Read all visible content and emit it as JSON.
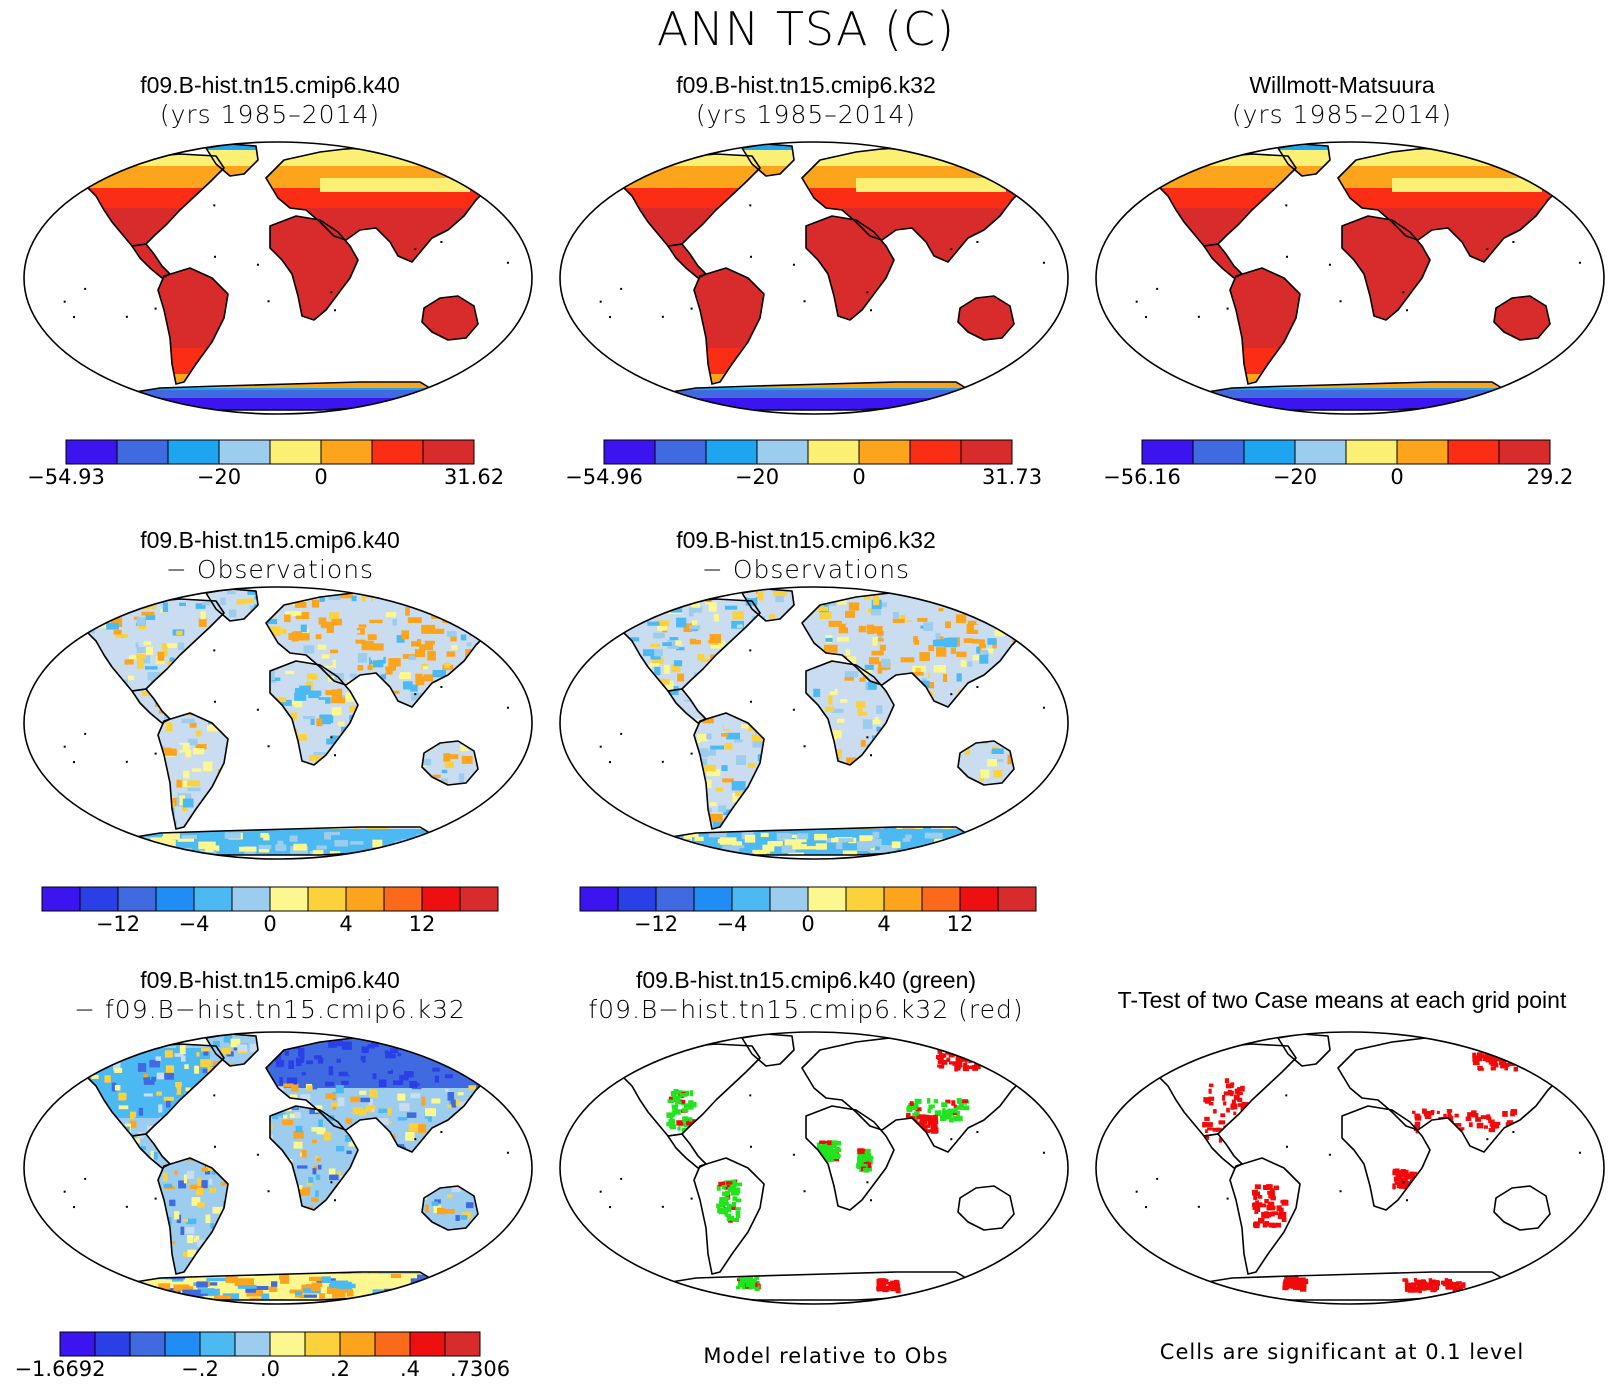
{
  "title": "ANN TSA (C)",
  "colors": {
    "land_light": "#c9dcf0",
    "coast": "#000000",
    "sig_green": "#22e31f",
    "sig_red": "#f20a0a"
  },
  "panels": [
    {
      "id": "k40",
      "line1": "f09.B-hist.tn15.cmip6.k40",
      "line2": "(yrs 1985–2014)",
      "kind": "abs"
    },
    {
      "id": "k32",
      "line1": "f09.B-hist.tn15.cmip6.k32",
      "line2": "(yrs 1985–2014)",
      "kind": "abs"
    },
    {
      "id": "obs",
      "line1": "Willmott-Matsuura",
      "line2": "(yrs 1985–2014)",
      "kind": "abs"
    },
    {
      "id": "k40mobs",
      "line1": "f09.B-hist.tn15.cmip6.k40",
      "line2": "− Observations",
      "kind": "bias"
    },
    {
      "id": "k32mobs",
      "line1": "f09.B-hist.tn15.cmip6.k32",
      "line2": "− Observations",
      "kind": "bias"
    },
    {
      "id": "diff",
      "line1": "f09.B-hist.tn15.cmip6.k40",
      "line2": "− f09.B−hist.tn15.cmip6.k32",
      "kind": "diff"
    },
    {
      "id": "sig",
      "line1": "f09.B-hist.tn15.cmip6.k40 (green)",
      "line2": "f09.B−hist.tn15.cmip6.k32 (red)",
      "kind": "sig"
    },
    {
      "id": "ttest",
      "line1": "T-Test of two Case means at each grid point",
      "line2": "",
      "kind": "ttest"
    }
  ],
  "colorbars": [
    {
      "id": "cb1",
      "colors": [
        "#3c14f0",
        "#3f6ae0",
        "#1ea5f2",
        "#9ccdee",
        "#fbf074",
        "#fca41c",
        "#fb2d14",
        "#d82b2b"
      ],
      "labels": [
        {
          "i": 0,
          "text": "−54.93"
        },
        {
          "i": 3,
          "text": "−20"
        },
        {
          "i": 5,
          "text": "0"
        },
        {
          "i": 8,
          "text": "31.62"
        }
      ]
    },
    {
      "id": "cb2",
      "colors": [
        "#3c14f0",
        "#3f6ae0",
        "#1ea5f2",
        "#9ccdee",
        "#fbf074",
        "#fca41c",
        "#fb2d14",
        "#d82b2b"
      ],
      "labels": [
        {
          "i": 0,
          "text": "−54.96"
        },
        {
          "i": 3,
          "text": "−20"
        },
        {
          "i": 5,
          "text": "0"
        },
        {
          "i": 8,
          "text": "31.73"
        }
      ]
    },
    {
      "id": "cb3",
      "colors": [
        "#3c14f0",
        "#3f6ae0",
        "#1ea5f2",
        "#9ccdee",
        "#fbf074",
        "#fca41c",
        "#fb2d14",
        "#d82b2b"
      ],
      "labels": [
        {
          "i": 0,
          "text": "−56.16"
        },
        {
          "i": 3,
          "text": "−20"
        },
        {
          "i": 5,
          "text": "0"
        },
        {
          "i": 8,
          "text": "29.2"
        }
      ]
    },
    {
      "id": "cb4",
      "colors": [
        "#3c14f0",
        "#2a3fe6",
        "#3f6ae0",
        "#1f8df3",
        "#4db9f2",
        "#9ccdee",
        "#fdf78f",
        "#fbd23c",
        "#fca41c",
        "#fb6a1a",
        "#ee1010",
        "#d82b2b"
      ],
      "labels": [
        {
          "i": 2,
          "text": "−12"
        },
        {
          "i": 4,
          "text": "−4"
        },
        {
          "i": 6,
          "text": "0"
        },
        {
          "i": 8,
          "text": "4"
        },
        {
          "i": 10,
          "text": "12"
        }
      ]
    },
    {
      "id": "cb5",
      "colors": [
        "#3c14f0",
        "#2a3fe6",
        "#3f6ae0",
        "#1f8df3",
        "#4db9f2",
        "#9ccdee",
        "#fdf78f",
        "#fbd23c",
        "#fca41c",
        "#fb6a1a",
        "#ee1010",
        "#d82b2b"
      ],
      "labels": [
        {
          "i": 2,
          "text": "−12"
        },
        {
          "i": 4,
          "text": "−4"
        },
        {
          "i": 6,
          "text": "0"
        },
        {
          "i": 8,
          "text": "4"
        },
        {
          "i": 10,
          "text": "12"
        }
      ]
    },
    {
      "id": "cb6",
      "colors": [
        "#3c14f0",
        "#2a3fe6",
        "#3f6ae0",
        "#1f8df3",
        "#4db9f2",
        "#9ccdee",
        "#fdf78f",
        "#fbd23c",
        "#fca41c",
        "#fb6a1a",
        "#ee1010",
        "#d82b2b"
      ],
      "labels": [
        {
          "i": 0,
          "text": "−1.6692"
        },
        {
          "i": 4,
          "text": "−.2"
        },
        {
          "i": 6,
          "text": ".0"
        },
        {
          "i": 8,
          "text": ".2"
        },
        {
          "i": 10,
          "text": ".4"
        },
        {
          "i": 12,
          "text": ".7306"
        }
      ]
    }
  ],
  "footers": {
    "sig": "Model relative to Obs",
    "ttest": "Cells are significant at 0.1 level"
  }
}
